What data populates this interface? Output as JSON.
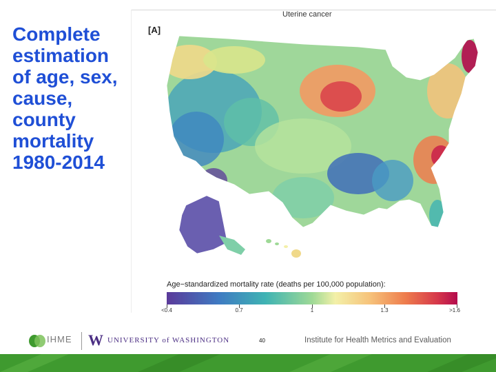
{
  "slide": {
    "title_lines": [
      "Complete",
      "estimation",
      "of age, sex,",
      "cause,",
      "county",
      "mortality",
      "1980-2014"
    ],
    "page_number": "40"
  },
  "map": {
    "title": "Uterine cancer",
    "panel_label": "[A]",
    "legend": {
      "title": "Age−standardized mortality rate (deaths per 100,000 population):",
      "labels": [
        "<0.4",
        "0.7",
        "1",
        "1.3",
        ">1.6"
      ],
      "colors": [
        "#5b3a9a",
        "#3f7bc2",
        "#3fb3b3",
        "#9ed996",
        "#f3f0a8",
        "#f6c27a",
        "#ee7d4d",
        "#d6384a",
        "#b30b4d"
      ]
    }
  },
  "footer": {
    "ihme_logo_text": "IHME",
    "uw_mark": "W",
    "uw_text": "UNIVERSITY of WASHINGTON",
    "institute": "Institute for Health Metrics and Evaluation"
  },
  "colors": {
    "title": "#1f4fd6",
    "band": "#3f9a2f"
  }
}
